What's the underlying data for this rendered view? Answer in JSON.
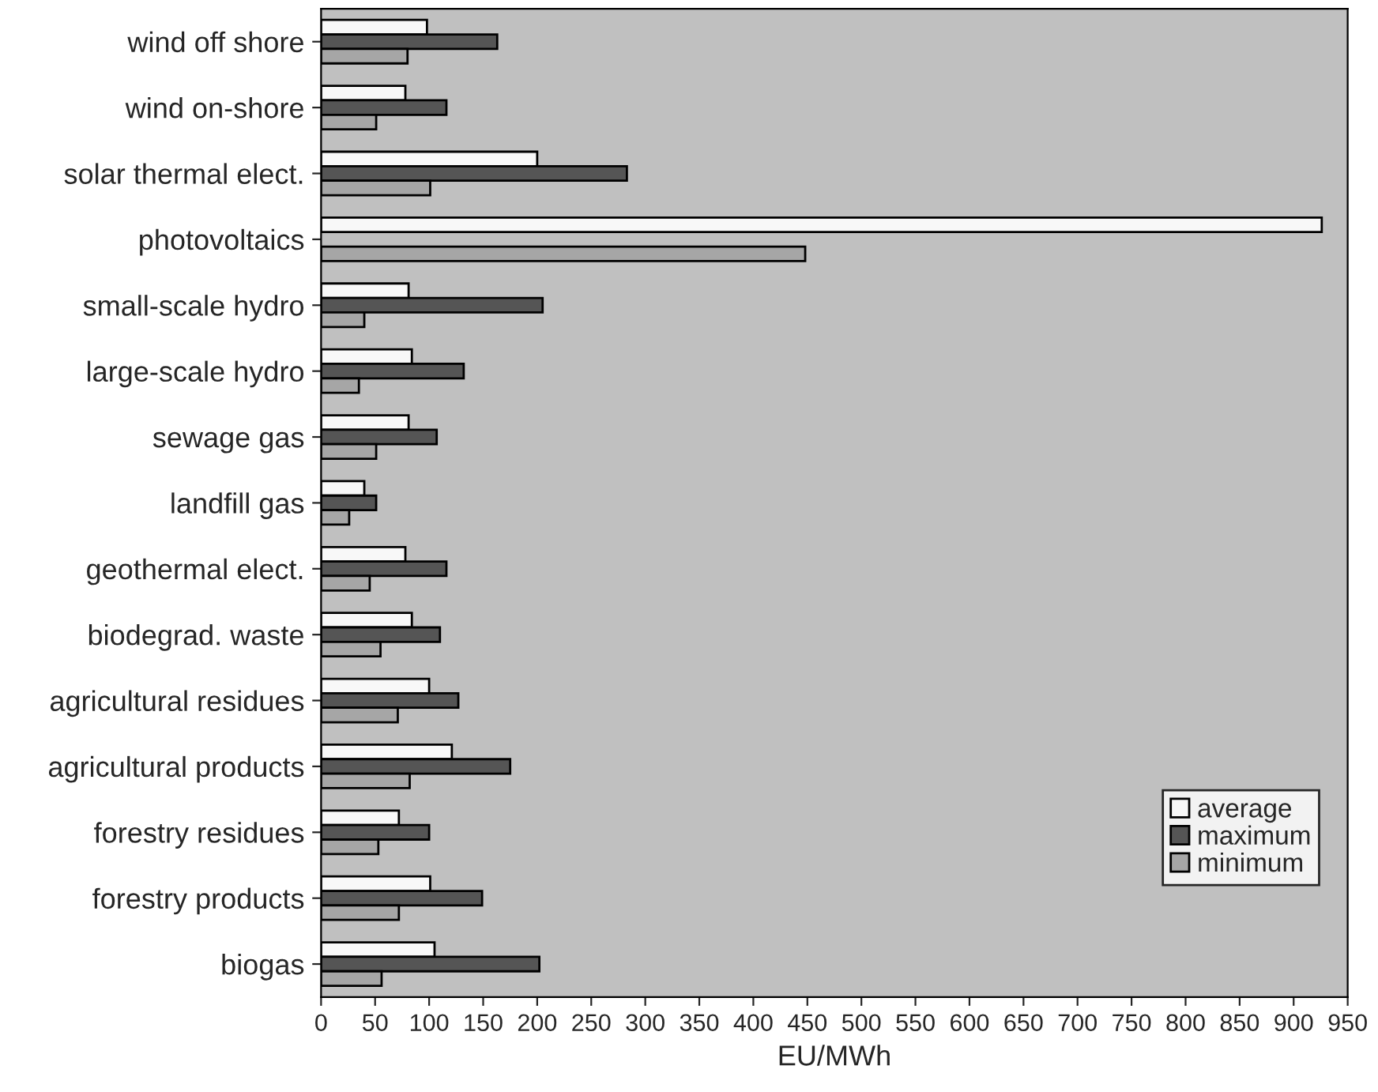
{
  "chart_data": {
    "type": "bar",
    "orientation": "horizontal",
    "xlabel": "EU/MWh",
    "categories": [
      "wind off shore",
      "wind on-shore",
      "solar thermal elect.",
      "photovoltaics",
      "small-scale hydro",
      "large-scale hydro",
      "sewage gas",
      "landfill gas",
      "geothermal elect.",
      "biodegrad. waste",
      "agricultural residues",
      "agricultural products",
      "forestry residues",
      "forestry products",
      "biogas"
    ],
    "series": [
      {
        "name": "average",
        "color": "#f8f8f8",
        "values": [
          98,
          78,
          200,
          926,
          81,
          84,
          81,
          40,
          78,
          84,
          100,
          121,
          72,
          101,
          105
        ]
      },
      {
        "name": "maximum",
        "color": "#555555",
        "values": [
          163,
          116,
          283,
          null,
          205,
          132,
          107,
          51,
          116,
          110,
          127,
          175,
          100,
          149,
          202
        ]
      },
      {
        "name": "minimum",
        "color": "#a6a6a6",
        "values": [
          80,
          51,
          101,
          448,
          40,
          35,
          51,
          26,
          45,
          55,
          71,
          82,
          53,
          72,
          56
        ]
      }
    ],
    "xlim": [
      0,
      950
    ],
    "xticks": [
      0,
      50,
      100,
      150,
      200,
      250,
      300,
      350,
      400,
      450,
      500,
      550,
      600,
      650,
      700,
      750,
      800,
      850,
      900,
      950
    ],
    "legend": "bottom right",
    "grid": false
  }
}
